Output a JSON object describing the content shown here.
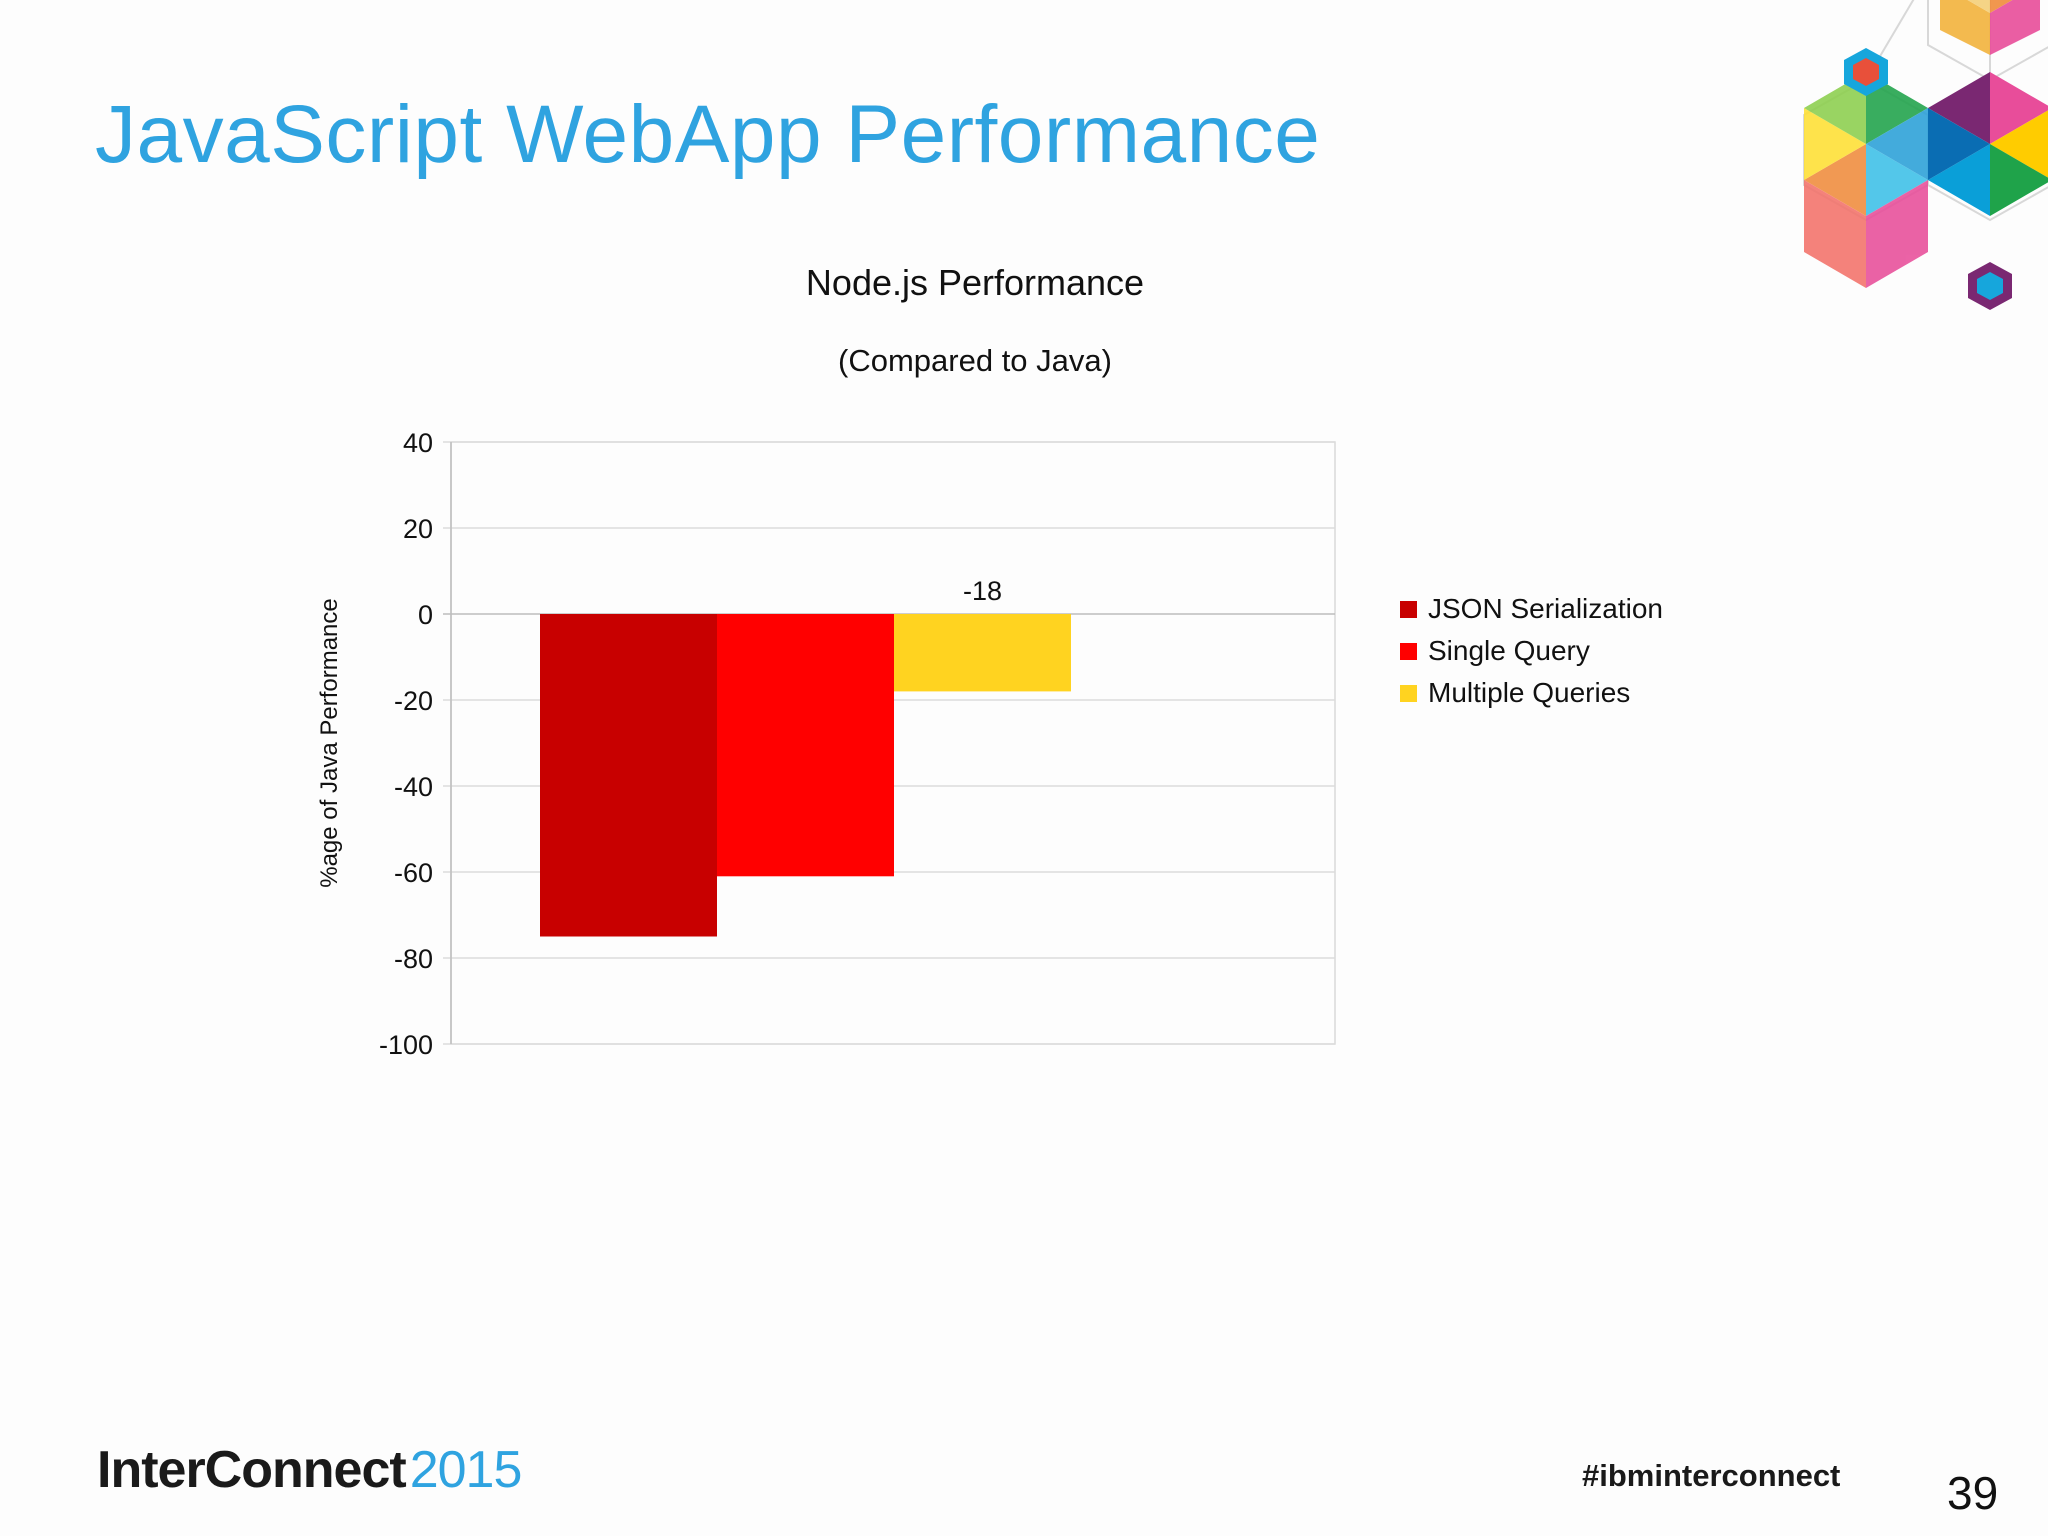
{
  "slide": {
    "title": "JavaScript WebApp Performance",
    "page_number": "39",
    "hashtag": "#ibminterconnect",
    "brand_primary": "InterConnect",
    "brand_year": "2015",
    "accent_color": "#2fa3e0"
  },
  "chart_data": {
    "type": "bar",
    "title": "Node.js Performance",
    "subtitle": "(Compared to Java)",
    "ylabel": "%age of Java Performance",
    "xlabel": "",
    "ylim": [
      -100,
      40
    ],
    "yticks": [
      40,
      20,
      0,
      -20,
      -40,
      -60,
      -80,
      -100
    ],
    "grid": true,
    "legend_position": "right",
    "series": [
      {
        "name": "JSON Serialization",
        "value": -75,
        "color": "#c80000"
      },
      {
        "name": "Single Query",
        "value": -61,
        "color": "#ff0000"
      },
      {
        "name": "Multiple Queries",
        "value": -18,
        "color": "#ffd320",
        "data_label": "-18"
      }
    ]
  },
  "decoration": {
    "logo": "hexagon-cluster-logo"
  }
}
